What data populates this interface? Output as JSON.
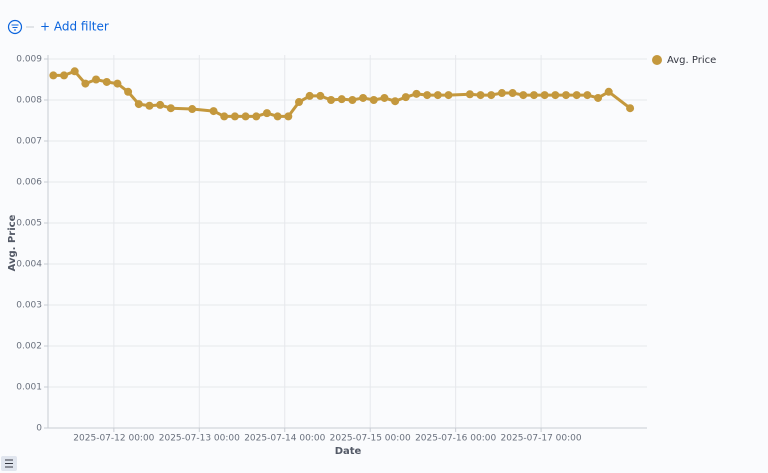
{
  "filter_bar": {
    "add_filter": "+ Add filter"
  },
  "chart_data": {
    "type": "line",
    "x_label": "Date",
    "y_label": "Avg. Price",
    "x": [
      "2025-07-11 07:00",
      "2025-07-11 10:00",
      "2025-07-11 13:00",
      "2025-07-11 16:00",
      "2025-07-11 19:00",
      "2025-07-11 22:00",
      "2025-07-12 01:00",
      "2025-07-12 04:00",
      "2025-07-12 07:00",
      "2025-07-12 10:00",
      "2025-07-12 13:00",
      "2025-07-12 16:00",
      "2025-07-12 22:00",
      "2025-07-13 04:00",
      "2025-07-13 07:00",
      "2025-07-13 10:00",
      "2025-07-13 13:00",
      "2025-07-13 16:00",
      "2025-07-13 19:00",
      "2025-07-13 22:00",
      "2025-07-14 01:00",
      "2025-07-14 04:00",
      "2025-07-14 07:00",
      "2025-07-14 10:00",
      "2025-07-14 13:00",
      "2025-07-14 16:00",
      "2025-07-14 19:00",
      "2025-07-14 22:00",
      "2025-07-15 01:00",
      "2025-07-15 04:00",
      "2025-07-15 07:00",
      "2025-07-15 10:00",
      "2025-07-15 13:00",
      "2025-07-15 16:00",
      "2025-07-15 19:00",
      "2025-07-15 22:00",
      "2025-07-16 04:00",
      "2025-07-16 07:00",
      "2025-07-16 10:00",
      "2025-07-16 13:00",
      "2025-07-16 16:00",
      "2025-07-16 19:00",
      "2025-07-16 22:00",
      "2025-07-17 01:00",
      "2025-07-17 04:00",
      "2025-07-17 07:00",
      "2025-07-17 10:00",
      "2025-07-17 13:00",
      "2025-07-17 16:00",
      "2025-07-17 19:00",
      "2025-07-18 01:00"
    ],
    "series": [
      {
        "name": "Avg. Price",
        "color": "#c4983d",
        "values": [
          0.0086,
          0.0086,
          0.0087,
          0.0084,
          0.0085,
          0.00844,
          0.0084,
          0.0082,
          0.0079,
          0.00786,
          0.00788,
          0.0078,
          0.00778,
          0.00773,
          0.0076,
          0.0076,
          0.0076,
          0.0076,
          0.00768,
          0.0076,
          0.0076,
          0.00795,
          0.0081,
          0.0081,
          0.008,
          0.00802,
          0.008,
          0.00805,
          0.008,
          0.00805,
          0.00797,
          0.00807,
          0.00815,
          0.00812,
          0.00812,
          0.00812,
          0.00814,
          0.00812,
          0.00812,
          0.00817,
          0.00817,
          0.00812,
          0.00812,
          0.00812,
          0.00812,
          0.00812,
          0.00812,
          0.00812,
          0.00805,
          0.0082,
          0.0078
        ]
      }
    ],
    "xlim": [
      "2025-07-11 05:30",
      "2025-07-18 05:45"
    ],
    "xticks": [
      "2025-07-12 00:00",
      "2025-07-13 00:00",
      "2025-07-14 00:00",
      "2025-07-15 00:00",
      "2025-07-16 00:00",
      "2025-07-17 00:00"
    ],
    "ylim": [
      0,
      0.009
    ],
    "yticks": [
      0,
      0.001,
      0.002,
      0.003,
      0.004,
      0.005,
      0.006,
      0.007,
      0.008,
      0.009
    ],
    "grid": true,
    "legend": "right"
  }
}
